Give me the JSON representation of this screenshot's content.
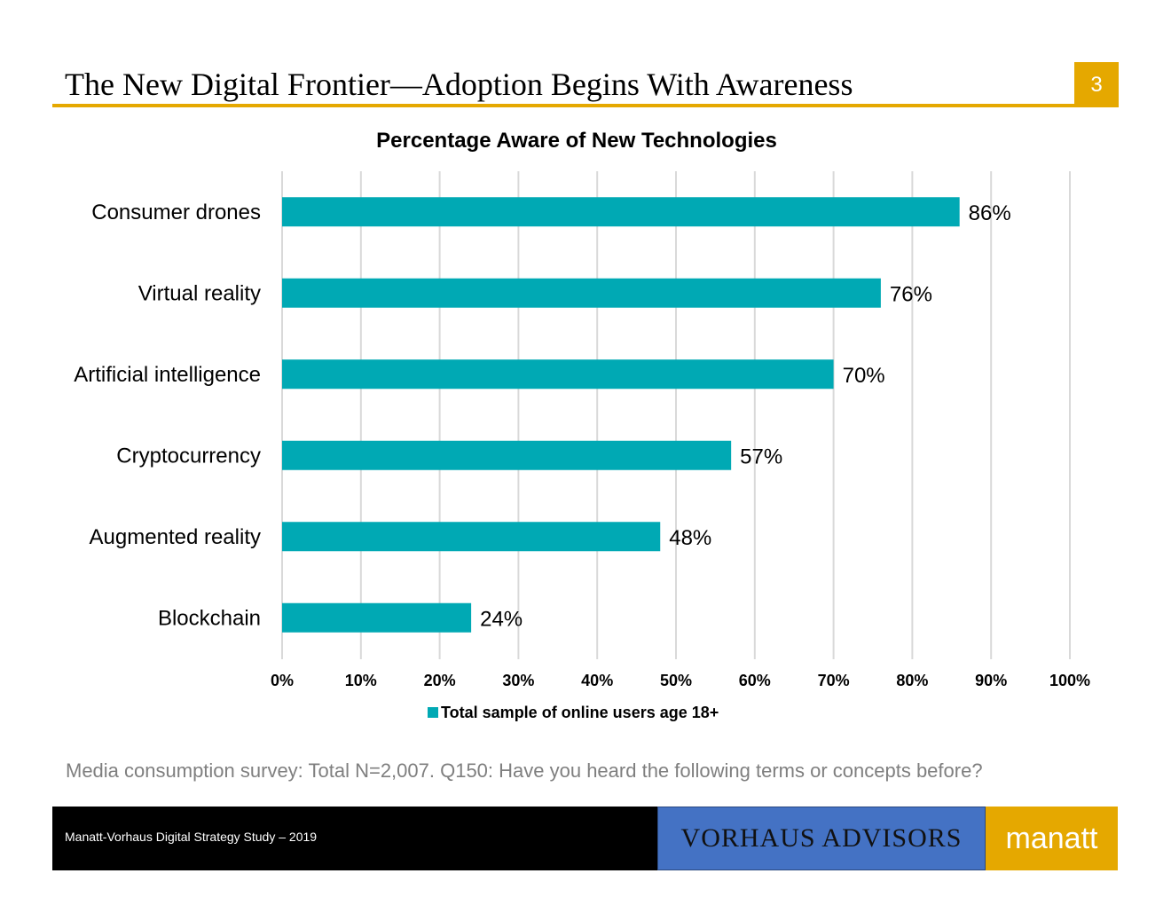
{
  "slide": {
    "title": "The New Digital Frontier—Adoption Begins With Awareness",
    "page_number": "3",
    "accent_color": "#E5A800"
  },
  "chart_data": {
    "type": "bar",
    "orientation": "horizontal",
    "title": "Percentage Aware of New Technologies",
    "categories": [
      "Consumer drones",
      "Virtual reality",
      "Artificial intelligence",
      "Cryptocurrency",
      "Augmented reality",
      "Blockchain"
    ],
    "series": [
      {
        "name": "Total sample of online users age 18+",
        "values": [
          86,
          76,
          70,
          57,
          48,
          24
        ],
        "labels": [
          "86%",
          "76%",
          "70%",
          "57%",
          "48%",
          "24%"
        ],
        "color": "#00A9B4"
      }
    ],
    "x_ticks": [
      "0%",
      "10%",
      "20%",
      "30%",
      "40%",
      "50%",
      "60%",
      "70%",
      "80%",
      "90%",
      "100%"
    ],
    "xlim": [
      0,
      100
    ],
    "grid": true,
    "legend": "bottom-center"
  },
  "footnote": "Media consumption survey: Total N=2,007. Q150: Have you heard the following terms or concepts before?",
  "footer": {
    "study_label": "Manatt-Vorhaus Digital Strategy Study – 2019",
    "vorhaus_logo": "VORHAUS ADVISORS",
    "manatt_logo": "manatt",
    "vorhaus_color": "#4472C4"
  }
}
